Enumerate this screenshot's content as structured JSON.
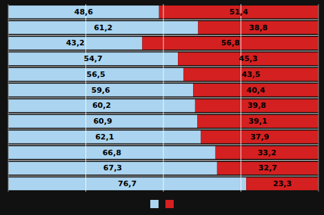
{
  "chart_data": {
    "type": "bar",
    "orientation": "horizontal",
    "stacked": true,
    "categories": [
      null,
      null,
      null,
      null,
      null,
      null,
      null,
      null,
      null,
      null,
      null,
      null
    ],
    "series": [
      {
        "color": "#aad4f0",
        "values": [
          48.6,
          61.2,
          43.2,
          54.7,
          56.5,
          59.6,
          60.2,
          60.9,
          62.1,
          66.8,
          67.3,
          76.7
        ],
        "value_labels": [
          "48,6",
          "61,2",
          "43,2",
          "54,7",
          "56,5",
          "59,6",
          "60,2",
          "60,9",
          "62,1",
          "66,8",
          "67,3",
          "76,7"
        ]
      },
      {
        "color": "#d42020",
        "values": [
          51.4,
          38.8,
          56.8,
          45.3,
          43.5,
          40.4,
          39.8,
          39.1,
          37.9,
          33.2,
          32.7,
          23.3
        ],
        "value_labels": [
          "51,4",
          "38,8",
          "56,8",
          "45,3",
          "43,5",
          "40,4",
          "39,8",
          "39,1",
          "37,9",
          "33,2",
          "32,7",
          "23,3"
        ]
      }
    ],
    "xlim": [
      0,
      100
    ],
    "xticks": [
      25,
      50,
      75
    ],
    "grid": true,
    "tick_labels": false,
    "data_labels": true,
    "legend": "bottom"
  }
}
